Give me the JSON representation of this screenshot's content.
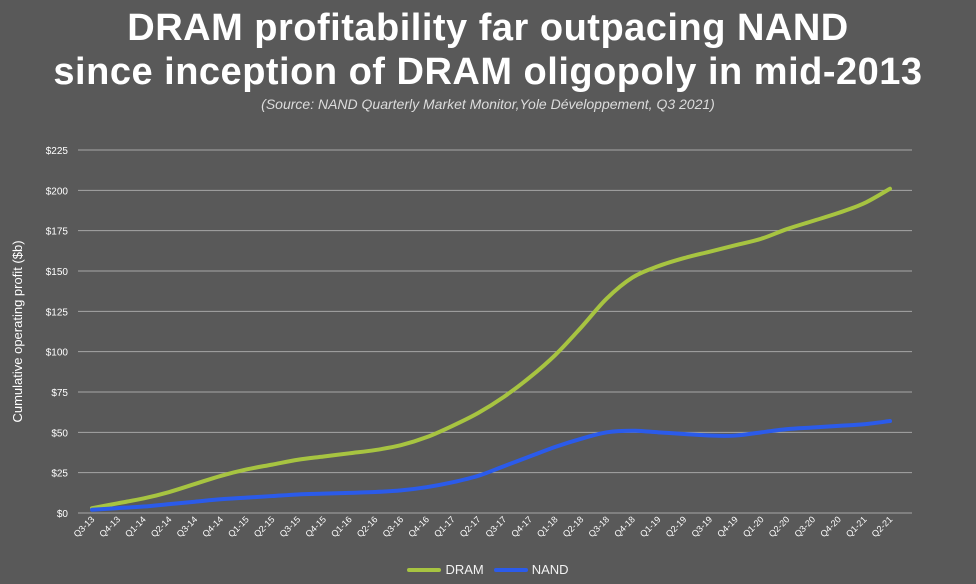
{
  "chart_data": {
    "type": "line",
    "title_line1": "DRAM profitability far outpacing NAND",
    "title_line2": "since inception of DRAM oligopoly in mid-2013",
    "subtitle": "(Source: NAND Quarterly Market Monitor,Yole Développement, Q3 2021)",
    "ylabel": "Cumulative operating profit ($b)",
    "xlabel": "",
    "ylim": [
      0,
      225
    ],
    "yticks": [
      0,
      25,
      50,
      75,
      100,
      125,
      150,
      175,
      200,
      225
    ],
    "ytick_labels": [
      "$0",
      "$25",
      "$50",
      "$75",
      "$100",
      "$125",
      "$150",
      "$175",
      "$200",
      "$225"
    ],
    "grid": true,
    "legend_position": "bottom",
    "categories": [
      "Q3-13",
      "Q4-13",
      "Q1-14",
      "Q2-14",
      "Q3-14",
      "Q4-14",
      "Q1-15",
      "Q2-15",
      "Q3-15",
      "Q4-15",
      "Q1-16",
      "Q2-16",
      "Q3-16",
      "Q4-16",
      "Q1-17",
      "Q2-17",
      "Q3-17",
      "Q4-17",
      "Q1-18",
      "Q2-18",
      "Q3-18",
      "Q4-18",
      "Q1-19",
      "Q2-19",
      "Q3-19",
      "Q4-19",
      "Q1-20",
      "Q2-20",
      "Q3-20",
      "Q4-20",
      "Q1-21",
      "Q2-21"
    ],
    "series": [
      {
        "name": "DRAM",
        "color": "#a7c441",
        "values": [
          3,
          6,
          9,
          13,
          18,
          23,
          27,
          30,
          33,
          35,
          37,
          39,
          42,
          47,
          54,
          62,
          72,
          84,
          98,
          115,
          133,
          146,
          153,
          158,
          162,
          166,
          170,
          176,
          181,
          186,
          192,
          201
        ]
      },
      {
        "name": "NAND",
        "color": "#2b5bea",
        "values": [
          2,
          3,
          4,
          5.5,
          7,
          8.5,
          9.5,
          10.5,
          11.5,
          12,
          12.5,
          13,
          14,
          16,
          19,
          23,
          29,
          35,
          41,
          46,
          50,
          51,
          50,
          49,
          48,
          48,
          50,
          52,
          53,
          54,
          55,
          57
        ]
      }
    ]
  },
  "colors": {
    "background": "#595959",
    "grid": "#a6a6a6"
  }
}
